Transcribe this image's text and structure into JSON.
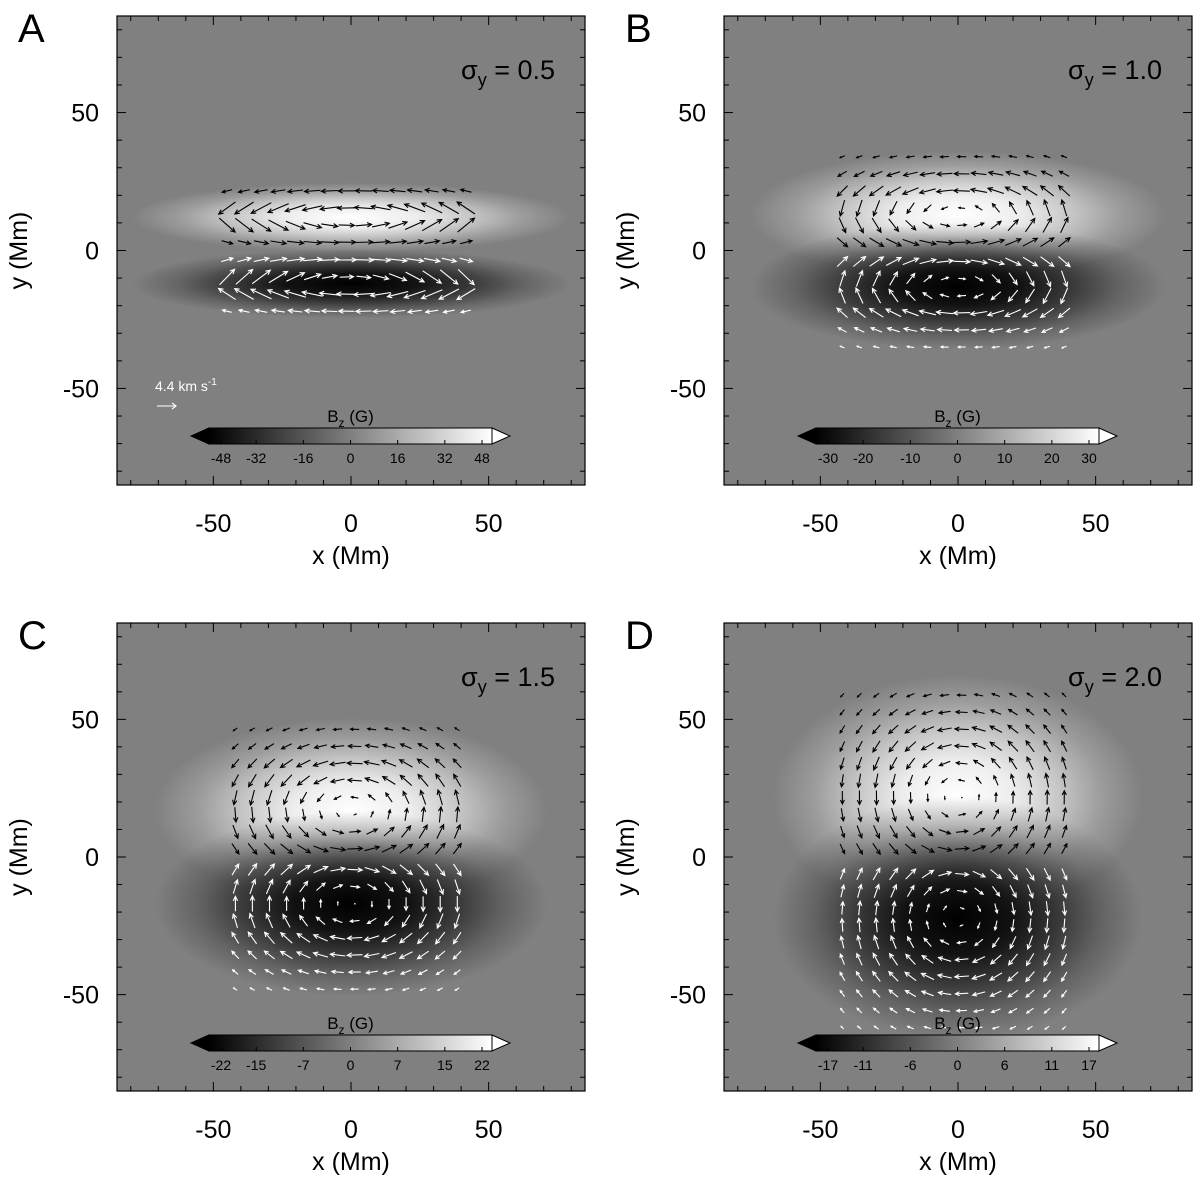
{
  "figure": {
    "x_axis_label": "x (Mm)",
    "y_axis_label": "y (Mm)"
  },
  "chart_data": [
    {
      "type": "heatmap",
      "panel_letter": "A",
      "annotation": {
        "base": "σ",
        "sub": "y",
        "rest": " = 0.5"
      },
      "sigma_y": 0.5,
      "xlabel": "x (Mm)",
      "ylabel": "y (Mm)",
      "xlim": [
        -85,
        85
      ],
      "ylim": [
        -85,
        85
      ],
      "x_ticks": [
        -50,
        0,
        50
      ],
      "y_ticks": [
        50,
        0,
        -50
      ],
      "field": {
        "peak_bz": 48,
        "center_pos": [
          0,
          12
        ],
        "center_neg": [
          0,
          -12
        ],
        "sigma_x": 38,
        "sigma_y": 6
      },
      "colorbar": {
        "label_base": "B",
        "label_sub": "z",
        "label_rest": " (G)",
        "ticks": [
          "-48",
          "-32",
          "-16",
          "0",
          "16",
          "32",
          "48"
        ],
        "range": [
          -48,
          48
        ]
      },
      "velocity_key": {
        "label_base": "4.4 km s",
        "label_sup": "-1",
        "speed_km_s": 4.4
      },
      "vector_extent": {
        "x": [
          -45,
          45
        ],
        "y_pos": [
          3,
          22
        ],
        "y_neg": [
          -22,
          -3
        ]
      },
      "vector_scale": 1.6
    },
    {
      "type": "heatmap",
      "panel_letter": "B",
      "annotation": {
        "base": "σ",
        "sub": "y",
        "rest": " = 1.0"
      },
      "sigma_y": 1.0,
      "xlabel": "x (Mm)",
      "ylabel": "y (Mm)",
      "xlim": [
        -85,
        85
      ],
      "ylim": [
        -85,
        85
      ],
      "x_ticks": [
        -50,
        0,
        50
      ],
      "y_ticks": [
        50,
        0,
        -50
      ],
      "field": {
        "peak_bz": 30,
        "center_pos": [
          0,
          13
        ],
        "center_neg": [
          0,
          -13
        ],
        "sigma_x": 36,
        "sigma_y": 11
      },
      "colorbar": {
        "label_base": "B",
        "label_sub": "z",
        "label_rest": " (G)",
        "ticks": [
          "-30",
          "-20",
          "-10",
          "0",
          "10",
          "20",
          "30"
        ],
        "range": [
          -30,
          30
        ]
      },
      "vector_extent": {
        "x": [
          -42,
          42
        ],
        "y_pos": [
          3,
          35
        ],
        "y_neg": [
          -35,
          -3
        ]
      },
      "vector_scale": 1.2
    },
    {
      "type": "heatmap",
      "panel_letter": "C",
      "annotation": {
        "base": "σ",
        "sub": "y",
        "rest": " = 1.5"
      },
      "sigma_y": 1.5,
      "xlabel": "x (Mm)",
      "ylabel": "y (Mm)",
      "xlim": [
        -85,
        85
      ],
      "ylim": [
        -85,
        85
      ],
      "x_ticks": [
        -50,
        0,
        50
      ],
      "y_ticks": [
        50,
        0,
        -50
      ],
      "field": {
        "peak_bz": 22,
        "center_pos": [
          0,
          17
        ],
        "center_neg": [
          0,
          -17
        ],
        "sigma_x": 34,
        "sigma_y": 16
      },
      "colorbar": {
        "label_base": "B",
        "label_sub": "z",
        "label_rest": " (G)",
        "ticks": [
          "-22",
          "-15",
          "-7",
          "0",
          "7",
          "15",
          "22"
        ],
        "range": [
          -22,
          22
        ]
      },
      "vector_extent": {
        "x": [
          -42,
          42
        ],
        "y_pos": [
          3,
          48
        ],
        "y_neg": [
          -48,
          -3
        ]
      },
      "vector_scale": 1.1
    },
    {
      "type": "heatmap",
      "panel_letter": "D",
      "annotation": {
        "base": "σ",
        "sub": "y",
        "rest": " = 2.0"
      },
      "sigma_y": 2.0,
      "xlabel": "x (Mm)",
      "ylabel": "y (Mm)",
      "xlim": [
        -85,
        85
      ],
      "ylim": [
        -85,
        85
      ],
      "x_ticks": [
        -50,
        0,
        50
      ],
      "y_ticks": [
        50,
        0,
        -50
      ],
      "field": {
        "peak_bz": 17,
        "center_pos": [
          0,
          22
        ],
        "center_neg": [
          0,
          -22
        ],
        "sigma_x": 32,
        "sigma_y": 21
      },
      "colorbar": {
        "label_base": "B",
        "label_sub": "z",
        "label_rest": " (G)",
        "ticks": [
          "-17",
          "-11",
          "-6",
          "0",
          "6",
          "11",
          "17"
        ],
        "range": [
          -17,
          17
        ]
      },
      "vector_extent": {
        "x": [
          -42,
          42
        ],
        "y_pos": [
          3,
          62
        ],
        "y_neg": [
          -62,
          -3
        ]
      },
      "vector_scale": 1.0
    }
  ]
}
